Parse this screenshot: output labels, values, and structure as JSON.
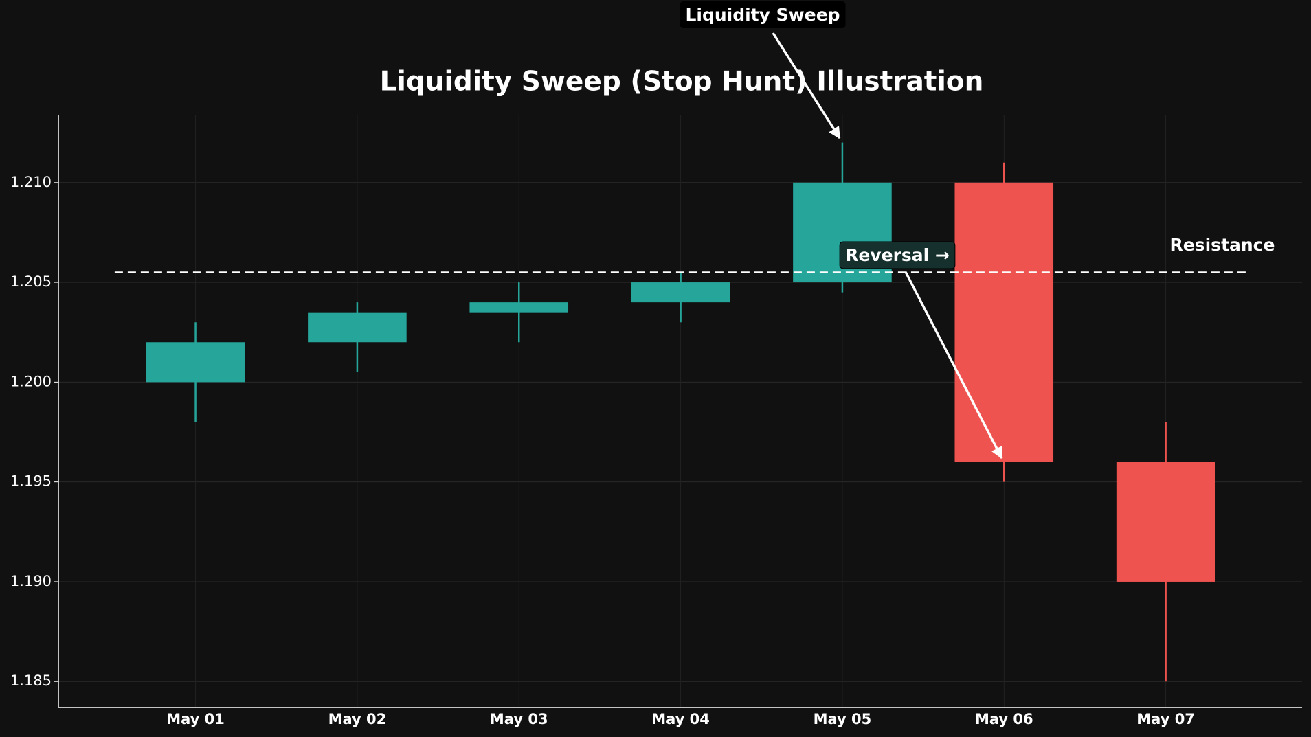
{
  "chart_data": {
    "type": "candlestick",
    "title": "Liquidity Sweep (Stop Hunt) Illustration",
    "categories": [
      "May 01",
      "May 02",
      "May 03",
      "May 04",
      "May 05",
      "May 06",
      "May 07"
    ],
    "open": [
      1.2,
      1.202,
      1.2035,
      1.204,
      1.205,
      1.21,
      1.196
    ],
    "high": [
      1.203,
      1.204,
      1.205,
      1.2055,
      1.212,
      1.211,
      1.198
    ],
    "low": [
      1.198,
      1.2005,
      1.202,
      1.203,
      1.2045,
      1.195,
      1.185
    ],
    "close": [
      1.202,
      1.2035,
      1.204,
      1.205,
      1.21,
      1.196,
      1.19
    ],
    "up_color": "#26a69a",
    "down_color": "#ef5350",
    "ylim": [
      1.1837,
      1.2134
    ],
    "yticks": [
      1.185,
      {
        "value": 1.19,
        "label": "1.190"
      },
      1.195,
      {
        "value": 1.2,
        "label": "1.200"
      },
      1.205,
      {
        "value": 1.21,
        "label": "1.210"
      }
    ],
    "grid": true,
    "resistance": {
      "value": 1.2055,
      "label": "Resistance"
    },
    "annotations": [
      "Liquidity Sweep",
      "Reversal →"
    ]
  }
}
